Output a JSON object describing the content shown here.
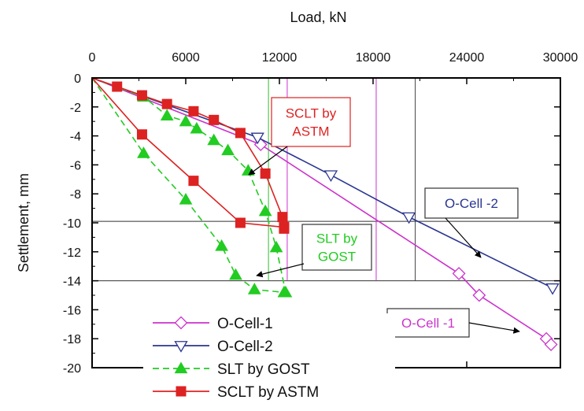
{
  "chart_data": {
    "type": "line",
    "title": "",
    "xlabel": "Load, kN",
    "ylabel": "Settlement, mm",
    "xlim": [
      0,
      30000
    ],
    "ylim": [
      -20,
      0
    ],
    "x_ticks": [
      "0",
      "6000",
      "12000",
      "18000",
      "24000",
      "30000"
    ],
    "y_ticks": [
      "0",
      "-2",
      "-4",
      "-6",
      "-8",
      "-10",
      "-12",
      "-14",
      "-16",
      "-18",
      "-20"
    ],
    "x_axis_position": "top",
    "grid": false,
    "legend_position": "bottom-left",
    "series": [
      {
        "name": "O-Cell-1",
        "color": "#cc33cc",
        "marker": "diamond-open",
        "x": [
          0,
          10800,
          23500,
          24800,
          29100,
          29400
        ],
        "y": [
          0,
          -4.6,
          -13.5,
          -15.0,
          -18.0,
          -18.4
        ]
      },
      {
        "name": "O-Cell-2",
        "color": "#2a3590",
        "marker": "triangle-down-open",
        "x": [
          0,
          10600,
          15300,
          20300,
          29500
        ],
        "y": [
          0,
          -4.1,
          -6.7,
          -9.6,
          -14.5
        ]
      },
      {
        "name": "SLT by GOST",
        "color": "#22cc22",
        "marker": "triangle-filled",
        "x": [
          0,
          3300,
          4800,
          6000,
          6700,
          7800,
          8700,
          10000,
          11100,
          11800,
          12400,
          3300,
          6000,
          8300,
          9200,
          10400,
          12300
        ],
        "y": [
          0,
          -1.3,
          -2.6,
          -3.0,
          -3.5,
          -4.3,
          -5.0,
          -6.4,
          -9.2,
          -11.7,
          -14.8,
          -5.2,
          -8.4,
          -11.6,
          -13.6,
          -14.6,
          -14.8
        ]
      },
      {
        "name": "SCLT by ASTM",
        "color": "#dd2222",
        "marker": "square-filled",
        "x": [
          0,
          1600,
          3200,
          4800,
          6500,
          7800,
          9500,
          11100,
          12200,
          12300,
          3200,
          6500,
          9500,
          12300
        ],
        "y": [
          0,
          -0.6,
          -1.2,
          -1.8,
          -2.3,
          -2.9,
          -3.8,
          -6.6,
          -9.6,
          -10.4,
          -3.9,
          -7.1,
          -10.0,
          -10.3
        ]
      }
    ],
    "reference_lines": {
      "horizontal_y": [
        -9.9,
        -14.0
      ],
      "vertical": [
        {
          "x": 11300,
          "color": "#33bb33"
        },
        {
          "x": 12500,
          "color": "#cc33cc"
        },
        {
          "x": 18200,
          "color": "#cc33cc"
        },
        {
          "x": 20700,
          "color": "#444444"
        }
      ]
    },
    "annotations": [
      {
        "lines": [
          "SCLT by",
          "ASTM"
        ],
        "color": "#dd2222",
        "border": "#dd2222"
      },
      {
        "lines": [
          "SLT by",
          "GOST"
        ],
        "color": "#22cc22",
        "border": "#333333"
      },
      {
        "lines": [
          "O-Cell -2"
        ],
        "color": "#2a3590",
        "border": "#333333"
      },
      {
        "lines": [
          "O-Cell -1"
        ],
        "color": "#cc33cc",
        "border": "#333333"
      }
    ]
  }
}
